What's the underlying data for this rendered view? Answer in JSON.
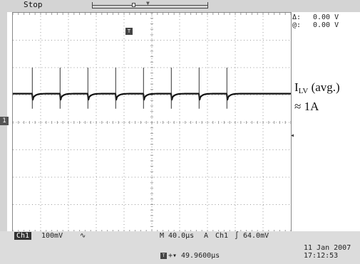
{
  "status": {
    "run_state": "Stop"
  },
  "cursor": {
    "delta_symbol": "Δ:",
    "delta_value": "0.00 V",
    "at_symbol": "@:",
    "at_value": "0.00 V"
  },
  "annotation": {
    "label_main": "I",
    "label_sub": "LV",
    "label_suffix": " (avg.)",
    "value_line": "≈ 1A"
  },
  "channel": {
    "name": "Ch1",
    "marker": "1",
    "scale": "100mV",
    "bandwidth_icon": "bw-limit-icon",
    "bandwidth_glyph": "∿"
  },
  "timebase": {
    "label": "M 40.0µs",
    "trigger_mode": "A",
    "trigger_source": "Ch1",
    "trigger_slope_glyph": "∫",
    "trigger_level": "64.0mV",
    "trigger_offset": "49.9600µs",
    "trigger_offset_arrow": "+▾"
  },
  "datetime": {
    "date": "11 Jan  2007",
    "time": "17:12:53"
  },
  "colors": {
    "trace": "#111111",
    "grid": "#9a9a9a",
    "bar": "#d4d4d4"
  },
  "trace": {
    "period_us": 40,
    "spike_times_us": [
      28,
      68,
      108,
      148,
      188,
      228,
      268,
      308
    ],
    "avg_level_div": 1.0,
    "initial_dip_div": 0.85,
    "settle_level_div": 1.05,
    "spike_height_div": 0.95
  }
}
